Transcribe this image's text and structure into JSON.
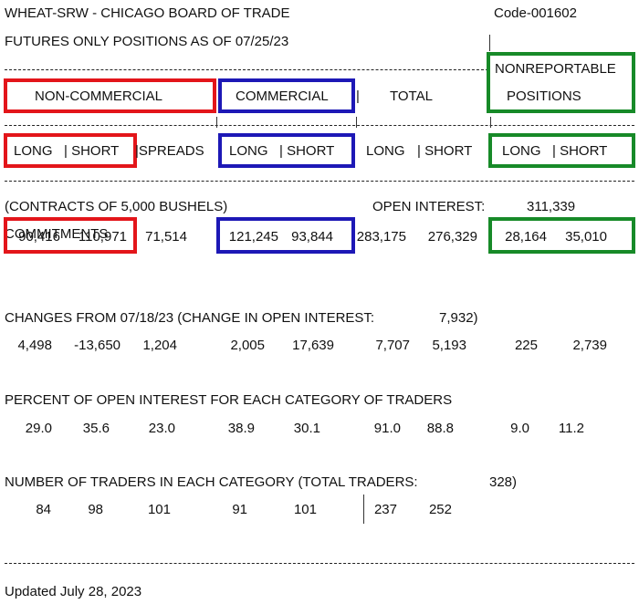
{
  "header": {
    "title": "WHEAT-SRW - CHICAGO BOARD OF TRADE",
    "code": "Code-001602",
    "subtitle": "FUTURES ONLY POSITIONS AS OF 07/25/23"
  },
  "columns": {
    "non_commercial": "NON-COMMERCIAL",
    "commercial": "COMMERCIAL",
    "total": "TOTAL",
    "nonreportable_line1": "NONREPORTABLE",
    "nonreportable_line2": "POSITIONS"
  },
  "subheaders": {
    "nc_long_short": "LONG   | SHORT",
    "spreads": "|SPREADS",
    "comm_long_short": "LONG   | SHORT",
    "total_long": "LONG",
    "total_short": "| SHORT",
    "nr_long_short": "LONG   | SHORT",
    "sep": "|"
  },
  "contracts_note": "(CONTRACTS OF 5,000 BUSHELS)",
  "open_interest": {
    "label": "OPEN INTEREST:",
    "value": "311,339"
  },
  "commitments": {
    "label": "COMMITMENTS",
    "values": [
      "90,416",
      "110,971",
      "71,514",
      "121,245",
      "93,844",
      "283,175",
      "276,329",
      "28,164",
      "35,010"
    ]
  },
  "changes": {
    "label": "CHANGES FROM 07/18/23 (CHANGE IN OPEN INTEREST:",
    "change_value": "7,932)",
    "values": [
      "4,498",
      "-13,650",
      "1,204",
      "2,005",
      "17,639",
      "7,707",
      "5,193",
      "225",
      "2,739"
    ]
  },
  "percent": {
    "label": "PERCENT OF OPEN INTEREST FOR EACH CATEGORY OF TRADERS",
    "values": [
      "29.0",
      "35.6",
      "23.0",
      "38.9",
      "30.1",
      "91.0",
      "88.8",
      "9.0",
      "11.2"
    ]
  },
  "traders": {
    "label": "NUMBER OF TRADERS IN EACH CATEGORY (TOTAL TRADERS:",
    "total_value": "328)",
    "values": [
      "84",
      "98",
      "101",
      "91",
      "101",
      "237",
      "252"
    ]
  },
  "footer": {
    "updated": "Updated July 28, 2023"
  },
  "colors": {
    "non_commercial": "#e3151a",
    "commercial": "#1d18b6",
    "nonreportable": "#178a28"
  }
}
